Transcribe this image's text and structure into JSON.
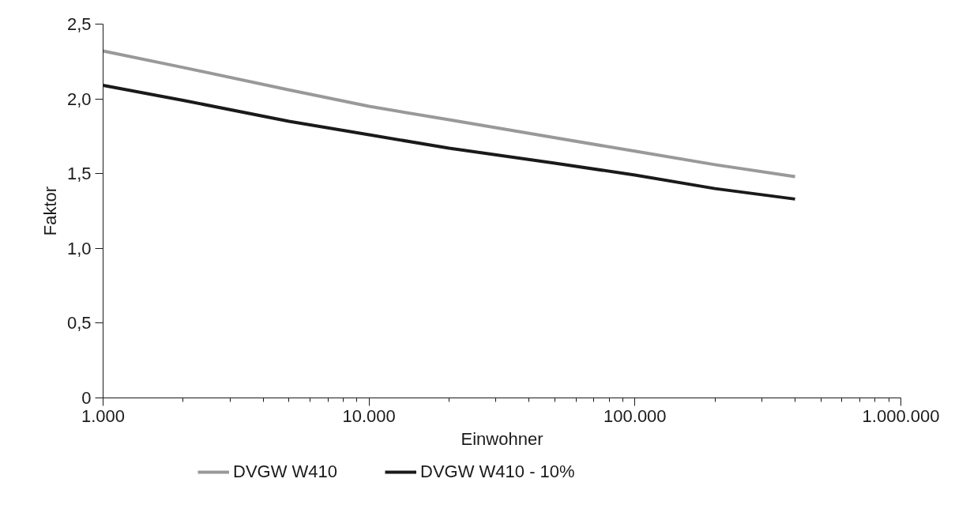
{
  "chart_data": {
    "type": "line",
    "xlabel": "Einwohner",
    "ylabel": "Faktor",
    "log": "x",
    "x": [
      1000,
      2000,
      5000,
      10000,
      20000,
      50000,
      100000,
      200000,
      400000
    ],
    "series": [
      {
        "name": "DVGW W410",
        "color": "#999999",
        "values": [
          2.32,
          2.21,
          2.06,
          1.95,
          1.86,
          1.74,
          1.65,
          1.56,
          1.48
        ]
      },
      {
        "name": "DVGW W410 - 10%",
        "color": "#1a1a1a",
        "values": [
          2.09,
          1.99,
          1.85,
          1.76,
          1.67,
          1.57,
          1.49,
          1.4,
          1.33
        ]
      }
    ],
    "xlim": [
      1000,
      1000000
    ],
    "ylim": [
      0,
      2.5
    ],
    "xticks": [
      {
        "value": 1000,
        "label": "1.000"
      },
      {
        "value": 10000,
        "label": "10.000"
      },
      {
        "value": 100000,
        "label": "100.000"
      },
      {
        "value": 1000000,
        "label": "1.000.000"
      }
    ],
    "yticks": [
      0,
      {
        "value": 0.5,
        "label": "0,5"
      },
      {
        "value": 1,
        "label": "1,0"
      },
      {
        "value": 1.5,
        "label": "1,5"
      },
      {
        "value": 2,
        "label": "2,0"
      },
      {
        "value": 2.5,
        "label": "2,5"
      }
    ],
    "grid": false,
    "legend": "bottom",
    "marker": "none",
    "line_style": "solid"
  }
}
